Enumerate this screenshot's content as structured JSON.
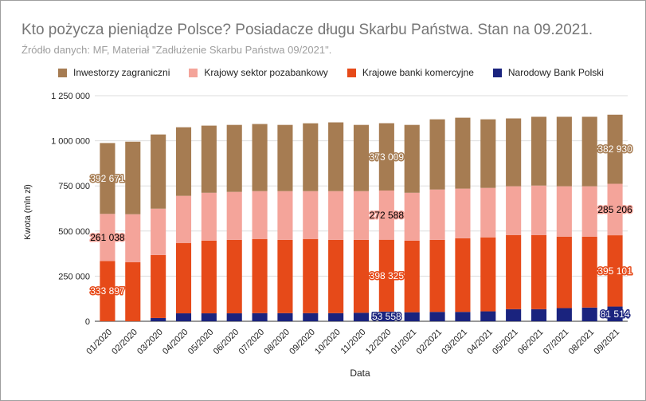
{
  "chart_data": {
    "type": "bar",
    "stacked": true,
    "title": "Kto pożycza pieniądze Polsce? Posiadacze długu Skarbu Państwa. Stan na 09.2021.",
    "subtitle": "Źródło danych: MF, Materiał \"Zadłużenie Skarbu Państwa 09/2021\".",
    "xlabel": "Data",
    "ylabel": "Kwota (mln zł)",
    "ylim": [
      0,
      1250000
    ],
    "yticks": [
      0,
      250000,
      500000,
      750000,
      1000000,
      1250000
    ],
    "ytick_labels": [
      "0",
      "250 000",
      "500 000",
      "750 000",
      "1 000 000",
      "1 250 000"
    ],
    "grid": true,
    "legend_position": "top",
    "categories": [
      "01/2020",
      "02/2020",
      "03/2020",
      "04/2020",
      "05/2020",
      "06/2020",
      "07/2020",
      "08/2020",
      "09/2020",
      "10/2020",
      "11/2020",
      "12/2020",
      "01/2021",
      "02/2021",
      "03/2021",
      "04/2021",
      "05/2021",
      "06/2021",
      "07/2021",
      "08/2021",
      "09/2021"
    ],
    "series": [
      {
        "name": "Narodowy Bank Polski",
        "color": "#1a237e",
        "label_fill": "#ffffff",
        "label_stroke": "#1a237e",
        "values": [
          0,
          0,
          18000,
          44000,
          44000,
          44000,
          45000,
          45000,
          45000,
          45000,
          47000,
          53558,
          50000,
          52000,
          52000,
          55000,
          67000,
          67000,
          73000,
          76000,
          81514
        ]
      },
      {
        "name": "Krajowe banki komercyjne",
        "color": "#e64a19",
        "label_fill": "#ffffff",
        "label_stroke": "#e64a19",
        "values": [
          333897,
          327000,
          349000,
          390000,
          403000,
          407000,
          411000,
          406000,
          411000,
          406000,
          404000,
          398325,
          397000,
          399000,
          408000,
          410000,
          411000,
          411000,
          396000,
          393000,
          395101
        ]
      },
      {
        "name": "Krajowy sektor pozabankowy",
        "color": "#f4a49a",
        "label_fill": "#000000",
        "label_stroke": "#f4a49a",
        "values": [
          261038,
          266000,
          257000,
          261000,
          265000,
          266000,
          265000,
          270000,
          265000,
          270000,
          270000,
          272588,
          265000,
          279000,
          275000,
          274000,
          270000,
          274000,
          279000,
          279000,
          285206
        ]
      },
      {
        "name": "Inwestorzy zagraniczni",
        "color": "#a67c52",
        "label_fill": "#ffffff",
        "label_stroke": "#a67c52",
        "values": [
          392671,
          402000,
          411000,
          380000,
          372000,
          371000,
          372000,
          367000,
          376000,
          381000,
          367000,
          373009,
          376000,
          389000,
          393000,
          380000,
          376000,
          381000,
          385000,
          385000,
          382930
        ]
      }
    ],
    "data_labels": [
      {
        "category_index": 0,
        "values": [
          "",
          "333 897",
          "261 038",
          "392 671"
        ]
      },
      {
        "category_index": 11,
        "values": [
          "53 558",
          "398 325",
          "272 588",
          "373 009"
        ]
      },
      {
        "category_index": 20,
        "values": [
          "81 514",
          "395 101",
          "285 206",
          "382 930"
        ]
      }
    ]
  },
  "legend_order": [
    3,
    2,
    1,
    0
  ]
}
